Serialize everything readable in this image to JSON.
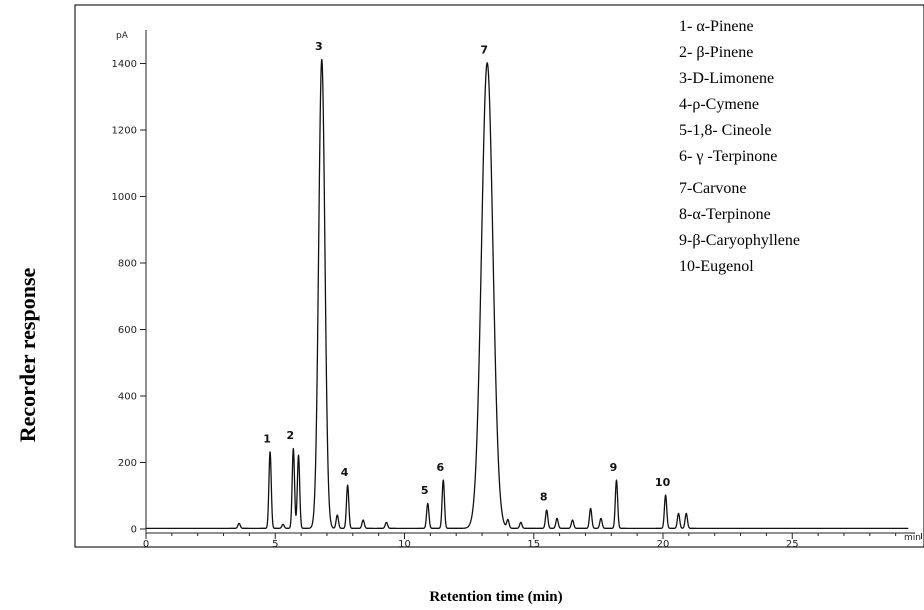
{
  "chart_data": {
    "type": "line",
    "ylabel": "Recorder response",
    "xlabel": "Retention time (min)",
    "y_unit": "pA",
    "x_unit": "min",
    "xlim": [
      0,
      30
    ],
    "ylim": [
      -20,
      1500
    ],
    "x_ticks": [
      0,
      5,
      10,
      15,
      20,
      25
    ],
    "y_ticks": [
      0,
      200,
      400,
      600,
      800,
      1000,
      1200,
      1400
    ],
    "grid": false,
    "legend_position": "top-right",
    "peaks": [
      {
        "label": "1",
        "x": 4.8,
        "y": 230
      },
      {
        "label": "2",
        "x": 5.7,
        "y": 240
      },
      {
        "label": "3",
        "x": 6.8,
        "y": 1410
      },
      {
        "label": "4",
        "x": 7.8,
        "y": 130
      },
      {
        "label": "5",
        "x": 10.9,
        "y": 75
      },
      {
        "label": "6",
        "x": 11.5,
        "y": 145
      },
      {
        "label": "7",
        "x": 13.2,
        "y": 1400
      },
      {
        "label": "8",
        "x": 15.5,
        "y": 55
      },
      {
        "label": "9",
        "x": 18.2,
        "y": 145
      },
      {
        "label": "10",
        "x": 20.1,
        "y": 100
      }
    ],
    "minor_peaks": [
      {
        "x": 3.6,
        "y": 15
      },
      {
        "x": 5.3,
        "y": 12
      },
      {
        "x": 5.9,
        "y": 220
      },
      {
        "x": 7.4,
        "y": 40
      },
      {
        "x": 8.4,
        "y": 25
      },
      {
        "x": 9.3,
        "y": 18
      },
      {
        "x": 14.0,
        "y": 25
      },
      {
        "x": 14.5,
        "y": 18
      },
      {
        "x": 15.9,
        "y": 30
      },
      {
        "x": 16.5,
        "y": 25
      },
      {
        "x": 17.2,
        "y": 60
      },
      {
        "x": 17.6,
        "y": 30
      },
      {
        "x": 20.6,
        "y": 45
      },
      {
        "x": 20.9,
        "y": 45
      }
    ],
    "legend": [
      "1- α-Pinene",
      "2- β-Pinene",
      "3-D-Limonene",
      "4-ρ-Cymene",
      "5-1,8- Cineole",
      "6- γ -Terpinone",
      "7-Carvone",
      "8-α-Terpinone",
      "9-β-Caryophyllene",
      "10-Eugenol"
    ],
    "colors": {
      "trace": "#111111",
      "frame": "#222222",
      "text": "#000000"
    }
  }
}
